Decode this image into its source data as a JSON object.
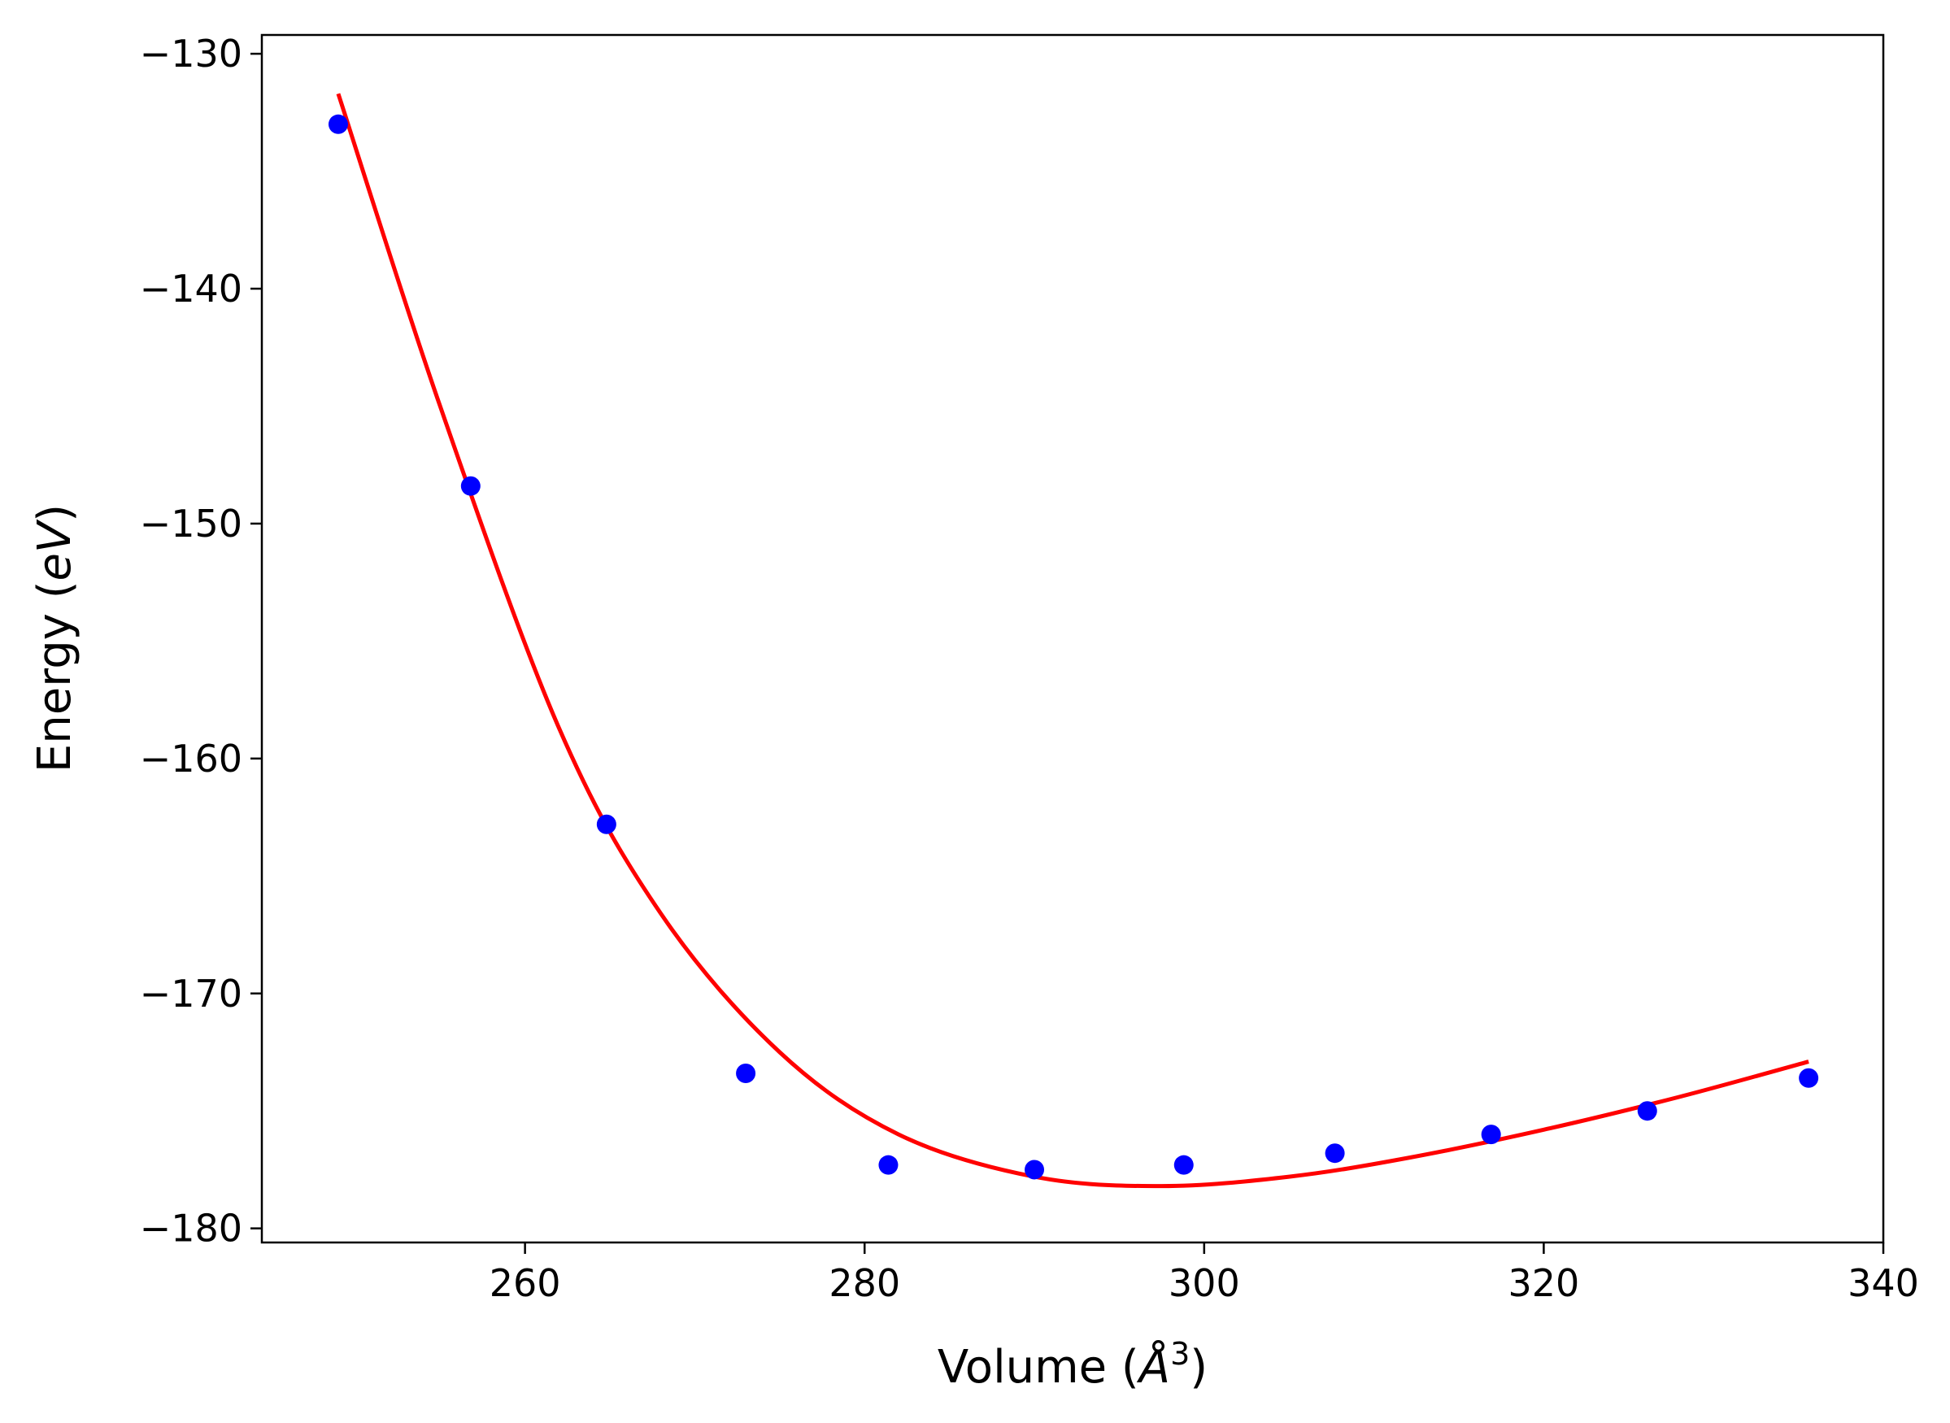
{
  "chart_data": {
    "type": "scatter",
    "title": "",
    "xlabel": "Volume (Å³)",
    "xlabel_parts": {
      "prefix": "Volume (",
      "italic": "Å",
      "superscript": "3",
      "suffix": ")"
    },
    "ylabel": "Energy (eV)",
    "ylabel_parts": {
      "prefix": "Energy (",
      "italic": "eV",
      "suffix": ")"
    },
    "xlim": [
      244.5,
      340
    ],
    "ylim": [
      -180.6,
      -129.2
    ],
    "xticks": [
      260,
      280,
      300,
      320,
      340
    ],
    "xtick_labels": [
      "260",
      "280",
      "300",
      "320",
      "340"
    ],
    "yticks": [
      -180,
      -170,
      -160,
      -150,
      -140,
      -130
    ],
    "ytick_labels": [
      "−180",
      "−170",
      "−160",
      "−150",
      "−140",
      "−130"
    ],
    "grid": false,
    "legend": "none",
    "series": [
      {
        "kind": "points",
        "color": "#0000ff",
        "x": [
          249.0,
          256.8,
          264.8,
          273.0,
          281.4,
          290.0,
          298.8,
          307.7,
          316.9,
          326.1,
          335.6
        ],
        "y": [
          -133.0,
          -148.4,
          -162.8,
          -173.4,
          -177.3,
          -177.5,
          -177.3,
          -176.8,
          -176.0,
          -175.0,
          -173.6
        ]
      },
      {
        "kind": "fit-line",
        "color": "#ff0000",
        "x": [
          249.0,
          255.0,
          262.0,
          268.0,
          275.0,
          282.0,
          290.0,
          297.5,
          305.0,
          312.0,
          320.0,
          328.0,
          335.6
        ],
        "y": [
          -131.7,
          -145.0,
          -158.7,
          -166.6,
          -172.5,
          -176.0,
          -177.8,
          -178.2,
          -177.8,
          -177.0,
          -175.8,
          -174.4,
          -172.9
        ]
      }
    ]
  }
}
